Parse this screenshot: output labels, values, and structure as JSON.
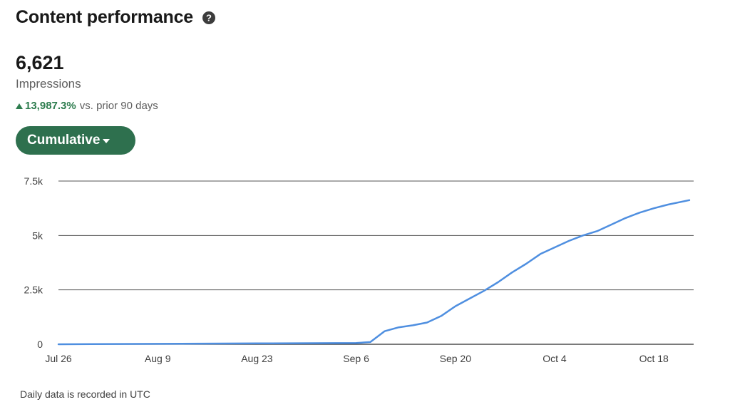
{
  "header": {
    "title": "Content performance",
    "help_icon": "question-circle-icon"
  },
  "metric": {
    "value": "6,621",
    "label": "Impressions"
  },
  "delta": {
    "percent": "13,987.3%",
    "comparison": "vs. prior 90 days",
    "direction": "up",
    "color": "#2e7d4f"
  },
  "dropdown": {
    "label": "Cumulative",
    "color": "#2e704e"
  },
  "footnote": "Daily data is recorded in UTC",
  "chart_data": {
    "type": "line",
    "title": "",
    "xlabel": "",
    "ylabel": "",
    "ylim": [
      0,
      7500
    ],
    "yticks": [
      0,
      2500,
      5000,
      7500
    ],
    "ytick_labels": [
      "0",
      "2.5k",
      "5k",
      "7.5k"
    ],
    "xticks": [
      "Jul 26",
      "Aug 9",
      "Aug 23",
      "Sep 6",
      "Sep 20",
      "Oct 4",
      "Oct 18"
    ],
    "grid": true,
    "line_color": "#4f8fe0",
    "series": [
      {
        "x": [
          "Jul 26",
          "Aug 9",
          "Aug 23",
          "Sep 6",
          "Sep 8",
          "Sep 10",
          "Sep 12",
          "Sep 14",
          "Sep 16",
          "Sep 18",
          "Sep 20",
          "Sep 22",
          "Sep 24",
          "Sep 26",
          "Sep 28",
          "Sep 30",
          "Oct 2",
          "Oct 4",
          "Oct 6",
          "Oct 8",
          "Oct 10",
          "Oct 12",
          "Oct 14",
          "Oct 16",
          "Oct 18",
          "Oct 20",
          "Oct 23"
        ],
        "values": [
          0,
          20,
          40,
          60,
          100,
          600,
          780,
          870,
          1000,
          1300,
          1750,
          2100,
          2450,
          2850,
          3300,
          3700,
          4150,
          4450,
          4750,
          5000,
          5200,
          5500,
          5800,
          6050,
          6250,
          6420,
          6621
        ]
      }
    ]
  }
}
